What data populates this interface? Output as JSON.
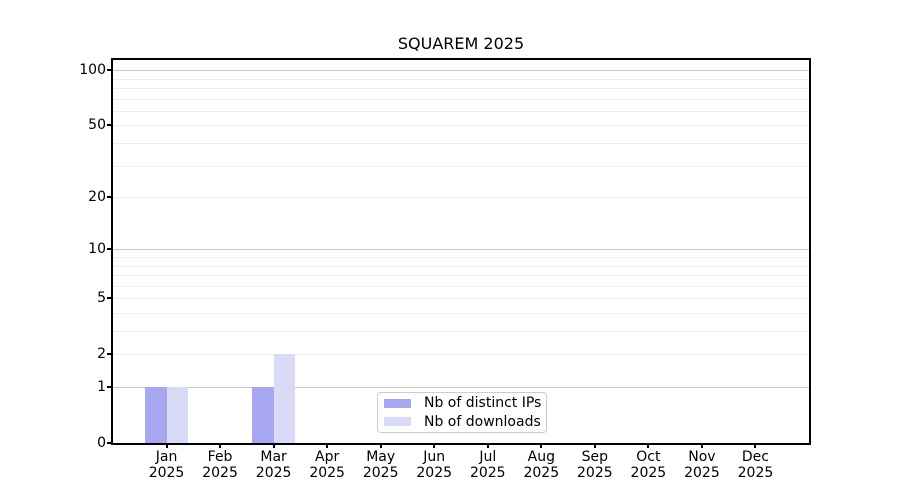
{
  "chart_data": {
    "type": "bar",
    "title": "SQUAREM 2025",
    "categories": [
      "Jan 2025",
      "Feb 2025",
      "Mar 2025",
      "Apr 2025",
      "May 2025",
      "Jun 2025",
      "Jul 2025",
      "Aug 2025",
      "Sep 2025",
      "Oct 2025",
      "Nov 2025",
      "Dec 2025"
    ],
    "series": [
      {
        "name": "Nb of distinct IPs",
        "color": "#a6a6f1",
        "values": [
          1,
          0,
          1,
          0,
          0,
          0,
          0,
          0,
          0,
          0,
          0,
          0
        ]
      },
      {
        "name": "Nb of downloads",
        "color": "#d9d9f8",
        "values": [
          1,
          0,
          2,
          0,
          0,
          0,
          0,
          0,
          0,
          0,
          0,
          0
        ]
      }
    ],
    "xlabel": "",
    "ylabel": "",
    "y_axis": {
      "scale": "log1p",
      "tick_values": [
        0,
        1,
        2,
        5,
        10,
        20,
        50,
        100
      ],
      "major_gridlines": [
        1,
        10,
        100
      ],
      "minor_gridlines": [
        2,
        3,
        4,
        5,
        6,
        7,
        8,
        9,
        20,
        30,
        40,
        50,
        60,
        70,
        80,
        90
      ],
      "ylim": [
        0,
        113.7
      ]
    },
    "legend": {
      "position": "lower center"
    },
    "grid": true
  },
  "colors": {
    "background": "#ffffff",
    "text": "#000000",
    "spine": "#000000",
    "major_grid": "#c6c6c6",
    "minor_grid": "#ededed",
    "legend_border": "#cccccc",
    "bar_distinct_ips": "#a6a6f1",
    "bar_downloads": "#d9d9f8"
  }
}
